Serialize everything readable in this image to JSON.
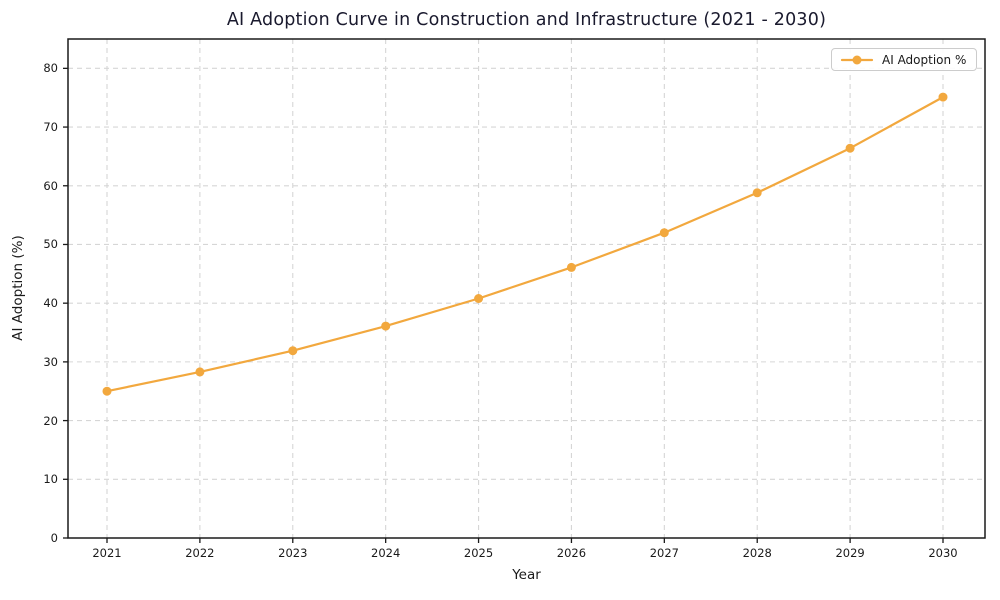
{
  "chart_data": {
    "type": "line",
    "title": "AI Adoption Curve in Construction and Infrastructure (2021 - 2030)",
    "xlabel": "Year",
    "ylabel": "AI Adoption (%)",
    "x": [
      2021,
      2022,
      2023,
      2024,
      2025,
      2026,
      2027,
      2028,
      2029,
      2030
    ],
    "series": [
      {
        "name": "AI Adoption %",
        "values": [
          25.0,
          28.3,
          31.9,
          36.1,
          40.8,
          46.1,
          52.0,
          58.8,
          66.4,
          75.1
        ]
      }
    ],
    "ylim": [
      0,
      85
    ],
    "yticks": [
      0,
      10,
      20,
      30,
      40,
      50,
      60,
      70,
      80
    ],
    "grid": true,
    "grid_style": "dashed",
    "legend_position": "upper right",
    "legend_entries": [
      "AI Adoption %"
    ],
    "marker": "circle",
    "colors": {
      "line": "#f2a83e",
      "marker": "#f2a83e",
      "grid": "#d6d6d6",
      "title": "#1a1a2e",
      "axis": "#1a1a1a",
      "background": "#ffffff"
    }
  }
}
